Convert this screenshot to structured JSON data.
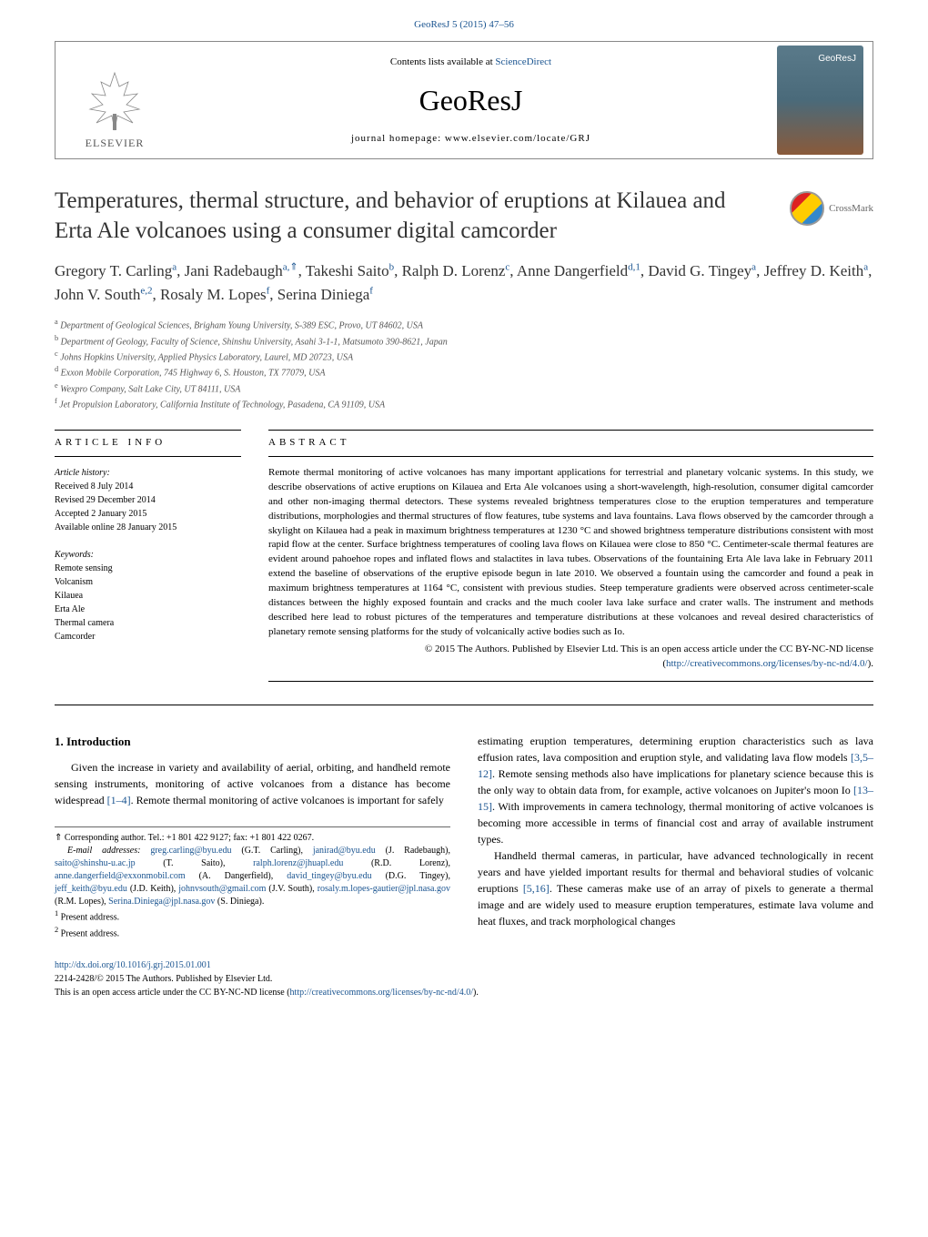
{
  "header": {
    "top_link": "GeoResJ 5 (2015) 47–56",
    "contents_available": "Contents lists available at ",
    "sciencedirect": "ScienceDirect",
    "journal_name": "GeoResJ",
    "homepage": "journal homepage: www.elsevier.com/locate/GRJ",
    "elsevier": "ELSEVIER",
    "cover_text": "GeoResJ"
  },
  "crossmark": {
    "text": "CrossMark"
  },
  "title": "Temperatures, thermal structure, and behavior of eruptions at Kilauea and Erta Ale volcanoes using a consumer digital camcorder",
  "authors": {
    "list": [
      {
        "name": "Gregory T. Carling",
        "sup": "a"
      },
      {
        "name": "Jani Radebaugh",
        "sup": "a,⇑"
      },
      {
        "name": "Takeshi Saito",
        "sup": "b"
      },
      {
        "name": "Ralph D. Lorenz",
        "sup": "c"
      },
      {
        "name": "Anne Dangerfield",
        "sup": "d,1"
      },
      {
        "name": "David G. Tingey",
        "sup": "a"
      },
      {
        "name": "Jeffrey D. Keith",
        "sup": "a"
      },
      {
        "name": "John V. South",
        "sup": "e,2"
      },
      {
        "name": "Rosaly M. Lopes",
        "sup": "f"
      },
      {
        "name": "Serina Diniega",
        "sup": "f"
      }
    ]
  },
  "affiliations": [
    {
      "sup": "a",
      "text": "Department of Geological Sciences, Brigham Young University, S-389 ESC, Provo, UT 84602, USA"
    },
    {
      "sup": "b",
      "text": "Department of Geology, Faculty of Science, Shinshu University, Asahi 3-1-1, Matsumoto 390-8621, Japan"
    },
    {
      "sup": "c",
      "text": "Johns Hopkins University, Applied Physics Laboratory, Laurel, MD 20723, USA"
    },
    {
      "sup": "d",
      "text": "Exxon Mobile Corporation, 745 Highway 6, S. Houston, TX 77079, USA"
    },
    {
      "sup": "e",
      "text": "Wexpro Company, Salt Lake City, UT 84111, USA"
    },
    {
      "sup": "f",
      "text": "Jet Propulsion Laboratory, California Institute of Technology, Pasadena, CA 91109, USA"
    }
  ],
  "article_info": {
    "header": "ARTICLE INFO",
    "history_label": "Article history:",
    "received": "Received 8 July 2014",
    "revised": "Revised 29 December 2014",
    "accepted": "Accepted 2 January 2015",
    "available": "Available online 28 January 2015",
    "keywords_label": "Keywords:",
    "keywords": [
      "Remote sensing",
      "Volcanism",
      "Kilauea",
      "Erta Ale",
      "Thermal camera",
      "Camcorder"
    ]
  },
  "abstract": {
    "header": "ABSTRACT",
    "text": "Remote thermal monitoring of active volcanoes has many important applications for terrestrial and planetary volcanic systems. In this study, we describe observations of active eruptions on Kilauea and Erta Ale volcanoes using a short-wavelength, high-resolution, consumer digital camcorder and other non-imaging thermal detectors. These systems revealed brightness temperatures close to the eruption temperatures and temperature distributions, morphologies and thermal structures of flow features, tube systems and lava fountains. Lava flows observed by the camcorder through a skylight on Kilauea had a peak in maximum brightness temperatures at 1230 °C and showed brightness temperature distributions consistent with most rapid flow at the center. Surface brightness temperatures of cooling lava flows on Kilauea were close to 850 °C. Centimeter-scale thermal features are evident around pahoehoe ropes and inflated flows and stalactites in lava tubes. Observations of the fountaining Erta Ale lava lake in February 2011 extend the baseline of observations of the eruptive episode begun in late 2010. We observed a fountain using the camcorder and found a peak in maximum brightness temperatures at 1164 °C, consistent with previous studies. Steep temperature gradients were observed across centimeter-scale distances between the highly exposed fountain and cracks and the much cooler lava lake surface and crater walls. The instrument and methods described here lead to robust pictures of the temperatures and temperature distributions at these volcanoes and reveal desired characteristics of planetary remote sensing platforms for the study of volcanically active bodies such as Io.",
    "copyright": "© 2015 The Authors. Published by Elsevier Ltd. This is an open access article under the CC BY-NC-ND license (",
    "license_url": "http://creativecommons.org/licenses/by-nc-nd/4.0/",
    "copyright_end": ")."
  },
  "body": {
    "intro_heading": "1. Introduction",
    "intro_p1": "Given the increase in variety and availability of aerial, orbiting, and handheld remote sensing instruments, monitoring of active volcanoes from a distance has become widespread ",
    "intro_p1_ref": "[1–4]",
    "intro_p1_end": ". Remote thermal monitoring of active volcanoes is important for safely",
    "intro_p2_start": "estimating eruption temperatures, determining eruption characteristics such as lava effusion rates, lava composition and eruption style, and validating lava flow models ",
    "intro_p2_ref1": "[3,5–12]",
    "intro_p2_mid": ". Remote sensing methods also have implications for planetary science because this is the only way to obtain data from, for example, active volcanoes on Jupiter's moon Io ",
    "intro_p2_ref2": "[13–15]",
    "intro_p2_end": ". With improvements in camera technology, thermal monitoring of active volcanoes is becoming more accessible in terms of financial cost and array of available instrument types.",
    "intro_p3_start": "Handheld thermal cameras, in particular, have advanced technologically in recent years and have yielded important results for thermal and behavioral studies of volcanic eruptions ",
    "intro_p3_ref": "[5,16]",
    "intro_p3_end": ". These cameras make use of an array of pixels to generate a thermal image and are widely used to measure eruption temperatures, estimate lava volume and heat fluxes, and track morphological changes"
  },
  "footnotes": {
    "corresponding": "⇑ Corresponding author. Tel.: +1 801 422 9127; fax: +1 801 422 0267.",
    "email_label": "E-mail addresses: ",
    "emails": [
      {
        "addr": "greg.carling@byu.edu",
        "name": "(G.T. Carling)"
      },
      {
        "addr": "janirad@byu.edu",
        "name": "(J. Radebaugh)"
      },
      {
        "addr": "saito@shinshu-u.ac.jp",
        "name": "(T. Saito)"
      },
      {
        "addr": "ralph.lorenz@jhuapl.edu",
        "name": "(R.D. Lorenz)"
      },
      {
        "addr": "anne.dangerfield@exxonmobil.com",
        "name": "(A. Dangerfield)"
      },
      {
        "addr": "david_tingey@byu.edu",
        "name": "(D.G. Tingey)"
      },
      {
        "addr": "jeff_keith@byu.edu",
        "name": "(J.D. Keith)"
      },
      {
        "addr": "johnvsouth@gmail.com",
        "name": "(J.V. South)"
      },
      {
        "addr": "rosaly.m.lopes-gautier@jpl.nasa.gov",
        "name": "(R.M. Lopes)"
      },
      {
        "addr": "Serina.Diniega@jpl.nasa.gov",
        "name": "(S. Diniega)"
      }
    ],
    "present1": "Present address.",
    "present2": "Present address."
  },
  "footer": {
    "doi": "http://dx.doi.org/10.1016/j.grj.2015.01.001",
    "issn": "2214-2428/© 2015 The Authors. Published by Elsevier Ltd.",
    "license": "This is an open access article under the CC BY-NC-ND license (",
    "license_url": "http://creativecommons.org/licenses/by-nc-nd/4.0/",
    "license_end": ")."
  }
}
